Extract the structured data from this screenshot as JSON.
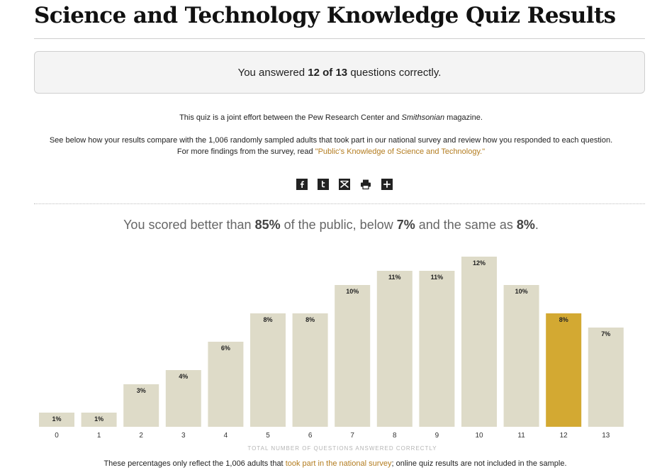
{
  "page": {
    "title": "Science and Technology Knowledge Quiz Results"
  },
  "score": {
    "prefix": "You answered",
    "value": "12 of 13",
    "suffix": "questions correctly."
  },
  "intro": {
    "line1_prefix": "This quiz is a joint effort between the Pew Research Center and",
    "line1_italic": "Smithsonian",
    "line1_suffix": "magazine.",
    "line2": "See below how your results compare with the 1,006 randomly sampled adults that took part in our national survey and review how you responded to each question.",
    "line3_prefix": "For more findings from the survey, read",
    "line3_link": "\"Public's Knowledge of Science and Technology.\""
  },
  "share": [
    {
      "icon": "facebook-icon",
      "glyph": "f"
    },
    {
      "icon": "twitter-icon",
      "glyph": "t"
    },
    {
      "icon": "email-icon",
      "glyph": "mail"
    },
    {
      "icon": "print-icon",
      "glyph": "print"
    },
    {
      "icon": "more-icon",
      "glyph": "+"
    }
  ],
  "comparison": {
    "text1": "You scored better than",
    "better": "85%",
    "text2": "of the public, below",
    "below": "7%",
    "text3": "and the same as",
    "same": "8%",
    "text4": "."
  },
  "chart_data": {
    "type": "bar",
    "categories": [
      "0",
      "1",
      "2",
      "3",
      "4",
      "5",
      "6",
      "7",
      "8",
      "9",
      "10",
      "11",
      "12",
      "13"
    ],
    "values": [
      1,
      1,
      3,
      4,
      6,
      8,
      8,
      10,
      11,
      11,
      12,
      10,
      8,
      7
    ],
    "value_labels": [
      "1%",
      "1%",
      "3%",
      "4%",
      "6%",
      "8%",
      "8%",
      "10%",
      "11%",
      "11%",
      "12%",
      "10%",
      "8%",
      "7%"
    ],
    "highlight_index": 12,
    "xlabel": "TOTAL NUMBER OF QUESTIONS ANSWERED CORRECTLY",
    "ylabel": "",
    "grid": false,
    "colors": {
      "bar": "#dedbc8",
      "highlight": "#d3a932"
    }
  },
  "footer": {
    "prefix": "These percentages only reflect the 1,006 adults that",
    "link": "took part in the national survey",
    "suffix": "; online quiz results are not included in the sample."
  }
}
